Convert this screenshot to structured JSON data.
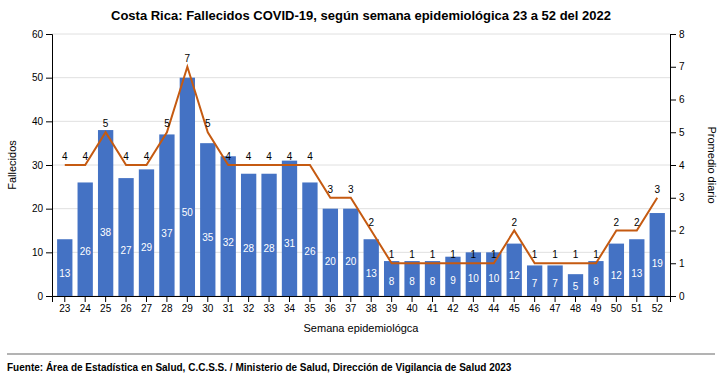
{
  "chart_data": {
    "type": "bar",
    "title": "Costa Rica: Fallecidos COVID-19, según semana epidemiológica 23 a 52 del 2022",
    "xlabel": "Semana epidemiológca",
    "ylabel": "Fallecidos",
    "y2label": "Promedio diario",
    "footer": "Fuente: Área de Estadística en Salud, C.C.S.S. / Ministerio de Salud, Dirección de Vigilancia de Salud 2023",
    "categories": [
      23,
      24,
      25,
      26,
      27,
      28,
      29,
      30,
      31,
      32,
      33,
      34,
      35,
      36,
      37,
      38,
      39,
      40,
      41,
      42,
      43,
      44,
      45,
      46,
      47,
      48,
      49,
      50,
      51,
      52
    ],
    "series": [
      {
        "type": "bar",
        "color": "#4472C4",
        "data_labels": true,
        "values": [
          13,
          26,
          38,
          27,
          29,
          37,
          50,
          35,
          32,
          28,
          28,
          31,
          26,
          20,
          20,
          13,
          8,
          8,
          8,
          9,
          10,
          10,
          12,
          7,
          7,
          5,
          8,
          12,
          13,
          19
        ]
      },
      {
        "type": "line",
        "axis": "y2",
        "color": "#C55A11",
        "data_labels": true,
        "values": [
          4,
          4,
          5,
          4,
          4,
          5,
          7,
          5,
          4,
          4,
          4,
          4,
          4,
          3,
          3,
          2,
          1,
          1,
          1,
          1,
          1,
          1,
          2,
          1,
          1,
          1,
          1,
          2,
          2,
          3
        ]
      }
    ],
    "ylim": [
      0,
      60
    ],
    "yticks": [
      0,
      10,
      20,
      30,
      40,
      50,
      60
    ],
    "y2lim": [
      0,
      8
    ],
    "y2ticks": [
      0,
      1,
      2,
      3,
      4,
      5,
      6,
      7,
      8
    ],
    "grid": true
  }
}
